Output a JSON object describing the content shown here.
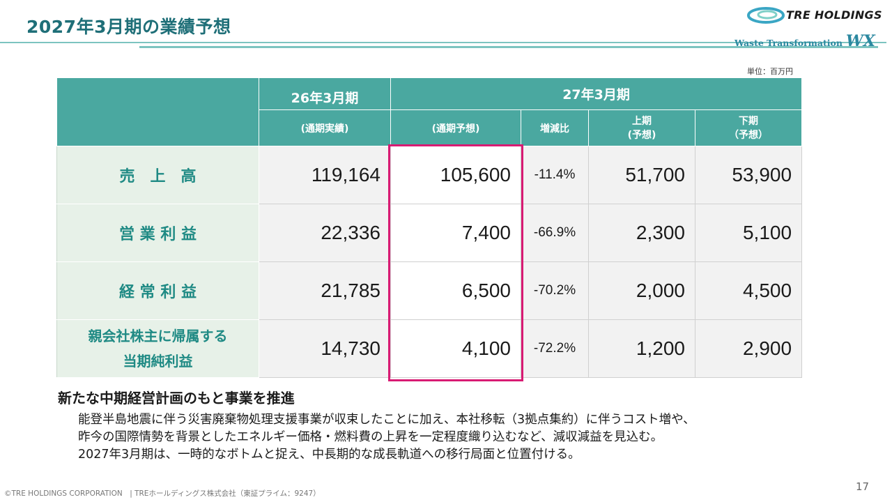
{
  "title": "2027年3月期の業績予想",
  "logo": {
    "name": "TRE HOLDINGS",
    "tagline": "Waste Transformation",
    "tagline_mark": "WX",
    "accent_color": "#2b88a0"
  },
  "unit_label": "単位：百万円",
  "table": {
    "col_fy26": "26年3月期",
    "col_fy26_sub": "(通期実績)",
    "col_fy27": "27年3月期",
    "col_fy27_full": "(通期予想)",
    "col_change": "増減比",
    "col_h1_line1": "上期",
    "col_h1_line2": "(予想)",
    "col_h2_line1": "下期",
    "col_h2_line2": "（予想）",
    "rows": [
      {
        "label": "売　上　高",
        "fy26": "119,164",
        "fy27": "105,600",
        "change": "-11.4%",
        "h1": "51,700",
        "h2": "53,900"
      },
      {
        "label": "営 業 利 益",
        "fy26": "22,336",
        "fy27": "7,400",
        "change": "-66.9%",
        "h1": "2,300",
        "h2": "5,100"
      },
      {
        "label": "経 常 利 益",
        "fy26": "21,785",
        "fy27": "6,500",
        "change": "-70.2%",
        "h1": "2,000",
        "h2": "4,500"
      },
      {
        "label_line1": "親会社株主に帰属する",
        "label_line2": "当期純利益",
        "fy26": "14,730",
        "fy27": "4,100",
        "change": "-72.2%",
        "h1": "1,200",
        "h2": "2,900"
      }
    ],
    "header_color": "#4aa8a0",
    "highlight_color": "#d81b73"
  },
  "comment": {
    "heading": "新たな中期経営計画のもと事業を推進",
    "lines": [
      "能登半島地震に伴う災害廃棄物処理支援事業が収束したことに加え、本社移転（3拠点集約）に伴うコスト増や、",
      "昨今の国際情勢を背景としたエネルギー価格・燃料費の上昇を一定程度織り込むなど、減収減益を見込む。",
      "2027年3月期は、一時的なボトムと捉え、中長期的な成長軌道への移行局面と位置付ける。"
    ]
  },
  "footer": "©TRE HOLDINGS CORPORATION　| TREホールディングス株式会社（東証プライム：9247）",
  "page_number": "17"
}
